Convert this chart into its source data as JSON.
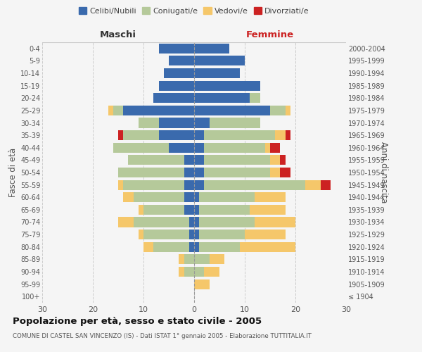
{
  "age_groups": [
    "100+",
    "95-99",
    "90-94",
    "85-89",
    "80-84",
    "75-79",
    "70-74",
    "65-69",
    "60-64",
    "55-59",
    "50-54",
    "45-49",
    "40-44",
    "35-39",
    "30-34",
    "25-29",
    "20-24",
    "15-19",
    "10-14",
    "5-9",
    "0-4"
  ],
  "birth_years": [
    "≤ 1904",
    "1905-1909",
    "1910-1914",
    "1915-1919",
    "1920-1924",
    "1925-1929",
    "1930-1934",
    "1935-1939",
    "1940-1944",
    "1945-1949",
    "1950-1954",
    "1955-1959",
    "1960-1964",
    "1965-1969",
    "1970-1974",
    "1975-1979",
    "1980-1984",
    "1985-1989",
    "1990-1994",
    "1995-1999",
    "2000-2004"
  ],
  "males": {
    "celibi": [
      0,
      0,
      0,
      0,
      1,
      1,
      1,
      2,
      2,
      2,
      2,
      2,
      5,
      7,
      7,
      14,
      8,
      7,
      6,
      5,
      7
    ],
    "coniugati": [
      0,
      0,
      2,
      2,
      7,
      9,
      11,
      8,
      10,
      12,
      13,
      11,
      11,
      7,
      4,
      2,
      0,
      0,
      0,
      0,
      0
    ],
    "vedovi": [
      0,
      0,
      1,
      1,
      2,
      1,
      3,
      1,
      2,
      1,
      0,
      0,
      0,
      0,
      0,
      1,
      0,
      0,
      0,
      0,
      0
    ],
    "divorziati": [
      0,
      0,
      0,
      0,
      0,
      0,
      0,
      0,
      0,
      0,
      0,
      0,
      0,
      1,
      0,
      0,
      0,
      0,
      0,
      0,
      0
    ]
  },
  "females": {
    "nubili": [
      0,
      0,
      0,
      0,
      1,
      1,
      1,
      1,
      1,
      2,
      2,
      2,
      2,
      2,
      3,
      15,
      11,
      13,
      9,
      10,
      7
    ],
    "coniugate": [
      0,
      0,
      2,
      3,
      8,
      9,
      11,
      10,
      11,
      20,
      13,
      13,
      12,
      14,
      10,
      3,
      2,
      0,
      0,
      0,
      0
    ],
    "vedove": [
      0,
      3,
      3,
      3,
      11,
      8,
      8,
      7,
      6,
      3,
      2,
      2,
      1,
      2,
      0,
      1,
      0,
      0,
      0,
      0,
      0
    ],
    "divorziate": [
      0,
      0,
      0,
      0,
      0,
      0,
      0,
      0,
      0,
      2,
      2,
      1,
      2,
      1,
      0,
      0,
      0,
      0,
      0,
      0,
      0
    ]
  },
  "colors": {
    "celibi": "#3a6aad",
    "coniugati": "#b5c99a",
    "vedovi": "#f5c76a",
    "divorziati": "#cc2222"
  },
  "xlim": 30,
  "title": "Popolazione per età, sesso e stato civile - 2005",
  "subtitle": "COMUNE DI CASTEL SAN VINCENZO (IS) - Dati ISTAT 1° gennaio 2005 - Elaborazione TUTTITALIA.IT",
  "ylabel_left": "Fasce di età",
  "ylabel_right": "Anni di nascita",
  "legend_labels": [
    "Celibi/Nubili",
    "Coniugati/e",
    "Vedovi/e",
    "Divorziati/e"
  ],
  "background_color": "#f5f5f5",
  "bar_height": 0.8
}
